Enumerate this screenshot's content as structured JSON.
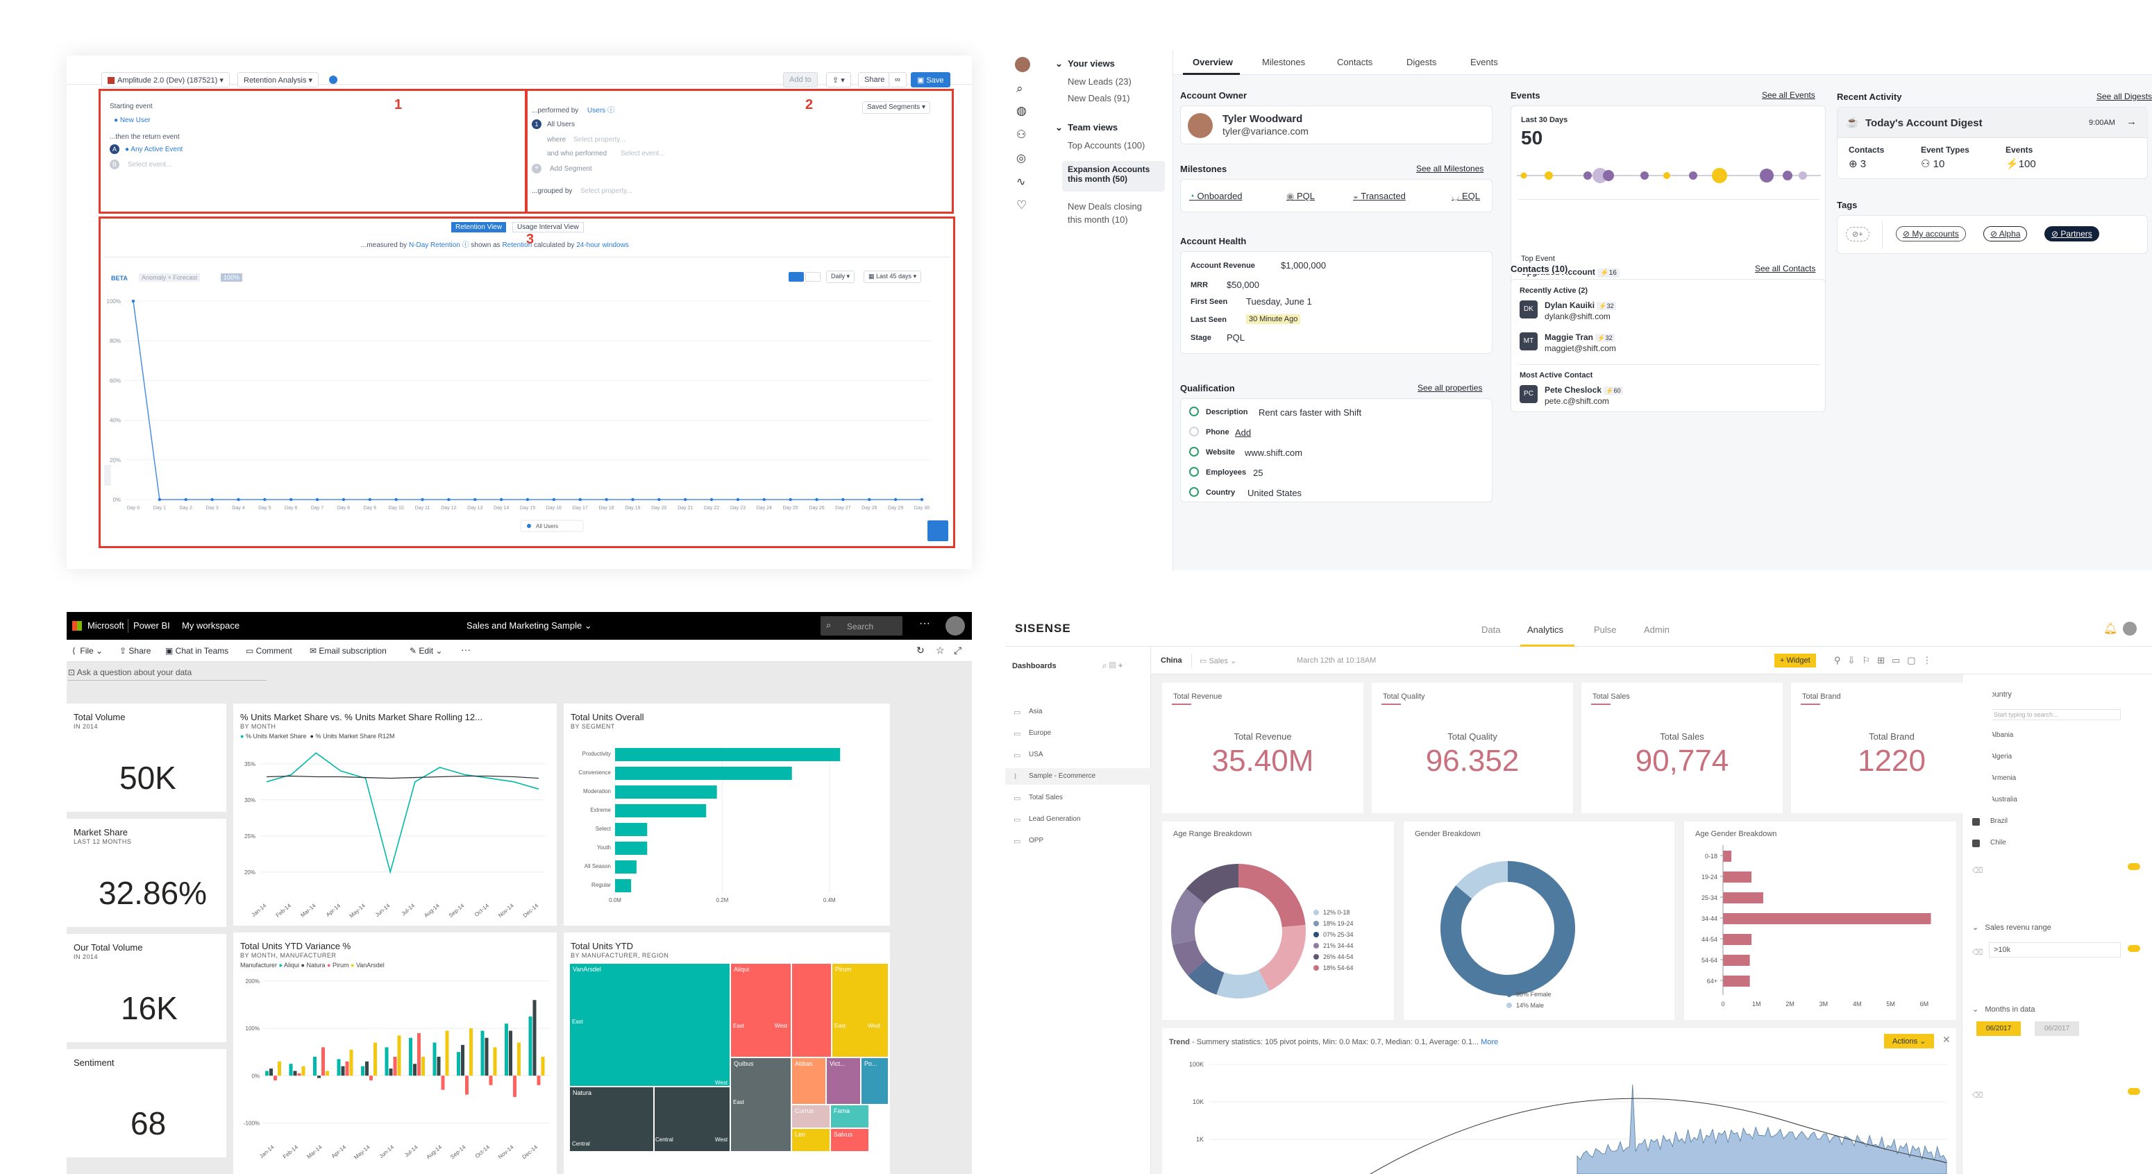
{
  "amplitude": {
    "project": "Amplitude 2.0 (Dev) (187521)",
    "chart_type": "Retention Analysis",
    "buttons": {
      "add_to": "Add to",
      "share": "Share",
      "save": "Save"
    },
    "box_numbers": [
      "1",
      "2",
      "3"
    ],
    "events": {
      "starting_label": "Starting event",
      "starting_value": "New User",
      "return_label": "...then the return event",
      "return_value": "Any Active Event",
      "select_placeholder": "Select event..."
    },
    "segment": {
      "performed_by": "...performed by",
      "users": "Users",
      "saved_segments": "Saved Segments",
      "all_users": "All Users",
      "where": "where",
      "select_property": "Select property...",
      "and_who_performed": "and who performed",
      "select_event": "Select event...",
      "add_segment": "Add Segment",
      "grouped_by": "...grouped by",
      "select_property2": "Select property..."
    },
    "views": {
      "retention": "Retention View",
      "usage": "Usage Interval View"
    },
    "measured": {
      "measured_by": "...measured by",
      "n_day": "N-Day Retention",
      "shown_as": "shown as",
      "retention": "Retention",
      "calculated_by": "calculated by",
      "windows": "24-hour windows"
    },
    "chart_controls": {
      "beta": "BETA",
      "anomaly": "Anomaly + Forecast",
      "percent": "100%",
      "daily": "Daily",
      "last45": "Last 45 days"
    },
    "legend": "All Users"
  },
  "crm": {
    "views": {
      "your_views": "Your views",
      "new_leads": "New Leads (23)",
      "new_deals": "New Deals (91)",
      "team_views": "Team views",
      "top_accounts": "Top Accounts (100)",
      "expansion": "Expansion Accounts this month (50)",
      "new_deals_closing": "New Deals closing this month (10)"
    },
    "tabs": [
      "Overview",
      "Milestones",
      "Contacts",
      "Digests",
      "Events"
    ],
    "account_owner": {
      "title": "Account Owner",
      "name": "Tyler Woodward",
      "email": "tyler@variance.com"
    },
    "milestones": {
      "title": "Milestones",
      "see_all": "See all Milestones",
      "items": [
        "Onboarded",
        "PQL",
        "Transacted",
        "EQL"
      ]
    },
    "account_health": {
      "title": "Account Health",
      "rows": [
        {
          "label": "Account Revenue",
          "value": "$1,000,000"
        },
        {
          "label": "MRR",
          "value": "$50,000"
        },
        {
          "label": "First Seen",
          "value": "Tuesday, June 1"
        },
        {
          "label": "Last Seen",
          "value": "30 Minute Ago"
        },
        {
          "label": "Stage",
          "value": "PQL"
        }
      ]
    },
    "qualification": {
      "title": "Qualification",
      "see_all": "See all properties",
      "rows": [
        {
          "label": "Description",
          "value": "Rent cars faster with Shift"
        },
        {
          "label": "Phone",
          "value": "Add"
        },
        {
          "label": "Website",
          "value": "www.shift.com"
        },
        {
          "label": "Employees",
          "value": "25"
        },
        {
          "label": "Country",
          "value": "United States"
        }
      ]
    },
    "events": {
      "title": "Events",
      "see_all": "See all Events",
      "period": "Last 30 Days",
      "count": "50",
      "top_event_label": "Top Event",
      "top_event": "Upgraded Account",
      "top_event_count": "16"
    },
    "contacts": {
      "title": "Contacts (10)",
      "see_all": "See all Contacts",
      "recently_active": "Recently Active (2)",
      "people": [
        {
          "initials": "DK",
          "name": "Dylan Kauiki",
          "score": "32",
          "email": "dylank@shift.com"
        },
        {
          "initials": "MT",
          "name": "Maggie Tran",
          "score": "32",
          "email": "maggiet@shift.com"
        }
      ],
      "most_active": "Most Active Contact",
      "top_person": {
        "initials": "PC",
        "name": "Pete Cheslock",
        "score": "60",
        "email": "pete.c@shift.com"
      }
    },
    "activity": {
      "title": "Recent Activity",
      "see_all": "See all Digests",
      "digest_title": "Today's Account Digest",
      "time": "9:00AM",
      "contacts_label": "Contacts",
      "contacts_value": "3",
      "types_label": "Event Types",
      "types_value": "10",
      "events_label": "Events",
      "events_value": "100"
    },
    "tags": {
      "title": "Tags",
      "items": [
        "My accounts",
        "Alpha",
        "Partners"
      ]
    }
  },
  "powerbi": {
    "brand": "Microsoft",
    "app": "Power BI",
    "workspace": "My workspace",
    "report": "Sales and Marketing Sample",
    "search_placeholder": "Search",
    "menu": [
      "File",
      "Share",
      "Chat in Teams",
      "Comment",
      "Email subscription",
      "Edit"
    ],
    "qa_placeholder": "Ask a question about your data",
    "kpis": [
      {
        "title": "Total Volume",
        "sub": "IN 2014",
        "value": "50K"
      },
      {
        "title": "Market Share",
        "sub": "LAST 12 MONTHS",
        "value": "32.86%"
      },
      {
        "title": "Our Total Volume",
        "sub": "IN 2014",
        "value": "16K"
      },
      {
        "title": "Sentiment",
        "sub": "",
        "value": "68"
      }
    ],
    "line_tile": {
      "title": "% Units Market Share vs. % Units Market Share Rolling 12...",
      "sub": "BY MONTH",
      "legend": [
        "% Units Market Share",
        "% Units Market Share R12M"
      ]
    },
    "bar_tile": {
      "title": "Total Units Overall",
      "sub": "BY SEGMENT"
    },
    "variance_tile": {
      "title": "Total Units YTD Variance %",
      "sub": "BY MONTH, MANUFACTURER",
      "legend_label": "Manufacturer",
      "legend": [
        "Aliqui",
        "Natura",
        "Pirum",
        "VanArsdel"
      ]
    },
    "treemap_tile": {
      "title": "Total Units YTD",
      "sub": "BY MANUFACTURER, REGION"
    },
    "treemap_labels": [
      "VanArsdel",
      "East",
      "Central",
      "West",
      "Aliqui",
      "East",
      "West",
      "Pirum",
      "East",
      "West",
      "Natura",
      "Central",
      "West",
      "Quibus",
      "Abbas",
      "Vict...",
      "Po...",
      "East",
      "Currus",
      "Fama",
      "Leo",
      "Salvus"
    ]
  },
  "sisense": {
    "logo": "SISENSE",
    "nav": [
      "Data",
      "Analytics",
      "Pulse",
      "Admin"
    ],
    "dashboards_label": "Dashboards",
    "folders": [
      "Asia",
      "Europe",
      "USA",
      "Sample - Ecommerce",
      "Total Sales",
      "Lead Generation",
      "OPP"
    ],
    "crumb": "China",
    "crumb2": "Sales",
    "timestamp": "March 12th at 10:18AM",
    "widget_button": "+ Widget",
    "kpis": [
      {
        "title": "Total Revenue",
        "value": "35.40M"
      },
      {
        "title": "Total Quality",
        "value": "96.352"
      },
      {
        "title": "Total Sales",
        "value": "90,774"
      },
      {
        "title": "Total Brand",
        "value": "1220"
      }
    ],
    "age_range": {
      "title": "Age Range Breakdown",
      "legend": [
        "12% 0-18",
        "18% 19-24",
        "07% 25-34",
        "21% 34-44",
        "26% 44-54",
        "18% 54-64"
      ]
    },
    "gender": {
      "title": "Gender Breakdown",
      "legend": [
        "86% Female",
        "14% Male"
      ]
    },
    "age_gender": {
      "title": "Age Gender Breakdown",
      "categories": [
        "0-18",
        "19-24",
        "25-34",
        "34-44",
        "44-54",
        "54-64",
        "64+"
      ],
      "ticks": [
        "0",
        "1M",
        "2M",
        "3M",
        "4M",
        "5M",
        "6M"
      ]
    },
    "trend": {
      "title": "Trend",
      "summary": " - Summery statistics: 105 pivot points, Min: 0.0 Max: 0.7, Median: 0.1, Average: 0.1...",
      "more": "More",
      "actions": "Actions",
      "yticks": [
        "100K",
        "10K",
        "1K"
      ]
    },
    "filters": {
      "country": "Country",
      "search_placeholder": "Start typing to search...",
      "countries": [
        "Albania",
        "Algeria",
        "Armenia",
        "Australia",
        "Brazil",
        "Chile"
      ],
      "sales_range": "Sales revenu range",
      "range_value": ">10k",
      "months": "Months in data",
      "month_from": "06/2017",
      "month_to": "06/2017"
    },
    "colors": {
      "accent": "#f5c518",
      "kpi": "#c9707f",
      "donut_blue": "#4f7aa0"
    }
  }
}
